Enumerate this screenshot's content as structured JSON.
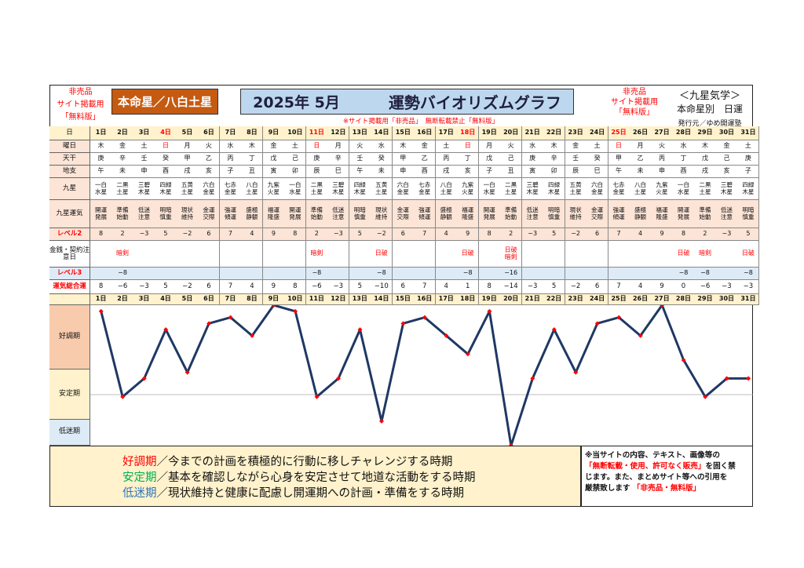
{
  "header": {
    "not_for_sale_left": [
      "非売品",
      "サイト掲載用",
      "「無料版」"
    ],
    "star_badge": "本命星／八白土星",
    "title_month": "2025年 5月",
    "title_main": "運勢バイオリズムグラフ",
    "not_for_sale_right": [
      "非売品",
      "サイト掲載用",
      "「無料版」"
    ],
    "brand": [
      "＜九星気学＞",
      "本命星別　日運",
      "発行元／ゆめ開運塾"
    ],
    "notice": "※サイト掲載用「非売品」　無断転載禁止「無料版」"
  },
  "row_labels": {
    "day": "日",
    "weekday": "曜日",
    "stem": "天干",
    "branch": "地支",
    "star": "九星",
    "fortune": "九星運気",
    "level2": "レベル2",
    "warn": "金銭・契約注意日",
    "level3": "レベル3",
    "total": "運気総合運"
  },
  "days": {
    "day": [
      "1日",
      "2日",
      "3日",
      "4日",
      "5日",
      "6日",
      "7日",
      "8日",
      "9日",
      "10日",
      "11日",
      "12日",
      "13日",
      "14日",
      "15日",
      "16日",
      "17日",
      "18日",
      "19日",
      "20日",
      "21日",
      "22日",
      "23日",
      "24日",
      "25日",
      "26日",
      "27日",
      "28日",
      "29日",
      "30日",
      "31日"
    ],
    "weekday": [
      "木",
      "金",
      "土",
      "日",
      "月",
      "火",
      "水",
      "木",
      "金",
      "土",
      "日",
      "月",
      "火",
      "水",
      "木",
      "金",
      "土",
      "日",
      "月",
      "火",
      "水",
      "木",
      "金",
      "土",
      "日",
      "月",
      "火",
      "水",
      "木",
      "金",
      "土"
    ],
    "sunday_idx": [
      3,
      10,
      17,
      24
    ],
    "stem": [
      "庚",
      "辛",
      "壬",
      "癸",
      "甲",
      "乙",
      "丙",
      "丁",
      "戊",
      "己",
      "庚",
      "辛",
      "壬",
      "癸",
      "甲",
      "乙",
      "丙",
      "丁",
      "戊",
      "己",
      "庚",
      "辛",
      "壬",
      "癸",
      "甲",
      "乙",
      "丙",
      "丁",
      "戊",
      "己",
      "庚"
    ],
    "branch": [
      "午",
      "未",
      "申",
      "酉",
      "戌",
      "亥",
      "子",
      "丑",
      "寅",
      "卯",
      "辰",
      "巳",
      "午",
      "未",
      "申",
      "酉",
      "戌",
      "亥",
      "子",
      "丑",
      "寅",
      "卯",
      "辰",
      "巳",
      "午",
      "未",
      "申",
      "酉",
      "戌",
      "亥",
      "子"
    ],
    "star": [
      "一白\n水星",
      "二黒\n土星",
      "三碧\n木星",
      "四緑\n木星",
      "五黄\n土星",
      "六白\n金星",
      "七赤\n金星",
      "八白\n土星",
      "九紫\n火星",
      "一白\n水星",
      "二黒\n土星",
      "三碧\n木星",
      "四緑\n木星",
      "五黄\n土星",
      "六白\n金星",
      "七赤\n金星",
      "八白\n土星",
      "九紫\n火星",
      "一白\n水星",
      "二黒\n土星",
      "三碧\n木星",
      "四緑\n木星",
      "五黄\n土星",
      "六白\n金星",
      "七赤\n金星",
      "八白\n土星",
      "九紫\n火星",
      "一白\n水星",
      "二黒\n土星",
      "三碧\n木星",
      "四緑\n木星"
    ],
    "fortune": [
      "開運\n発展",
      "準備\n始動",
      "低迷\n注意",
      "明暗\n慎重",
      "現状\n維持",
      "金運\n交際",
      "強運\n傾運",
      "盛極\n静観",
      "福運\n隆盛",
      "開運\n発展",
      "準備\n始動",
      "低迷\n注意",
      "明暗\n慎重",
      "現状\n維持",
      "金運\n交際",
      "強運\n傾運",
      "盛極\n静観",
      "福運\n隆盛",
      "開運\n発展",
      "準備\n始動",
      "低迷\n注意",
      "明暗\n慎重",
      "現状\n維持",
      "金運\n交際",
      "強運\n傾運",
      "盛極\n静観",
      "福運\n隆盛",
      "開運\n発展",
      "準備\n始動",
      "低迷\n注意",
      "明暗\n慎重"
    ],
    "level2": [
      "8",
      "2",
      "−3",
      "5",
      "−2",
      "6",
      "7",
      "4",
      "9",
      "8",
      "2",
      "−3",
      "5",
      "−2",
      "6",
      "7",
      "4",
      "9",
      "8",
      "2",
      "−3",
      "5",
      "−2",
      "6",
      "7",
      "4",
      "9",
      "8",
      "2",
      "−3",
      "5"
    ],
    "warn": [
      "",
      "暗剣",
      "",
      "",
      "",
      "",
      "",
      "",
      "",
      "",
      "暗剣",
      "",
      "",
      "日破",
      "",
      "",
      "",
      "日破",
      "",
      "日破\n暗剣",
      "",
      "",
      "",
      "",
      "",
      "",
      "",
      "日破",
      "暗剣",
      "",
      "日破"
    ],
    "level3": [
      "",
      "−8",
      "",
      "",
      "",
      "",
      "",
      "",
      "",
      "",
      "−8",
      "",
      "",
      "−8",
      "",
      "",
      "",
      "−8",
      "",
      "−16",
      "",
      "",
      "",
      "",
      "",
      "",
      "",
      "−8",
      "−8",
      "",
      "−8"
    ],
    "total": [
      "8",
      "−6",
      "−3",
      "5",
      "−2",
      "6",
      "7",
      "4",
      "9",
      "8",
      "−6",
      "−3",
      "5",
      "−10",
      "6",
      "7",
      "4",
      "1",
      "8",
      "−14",
      "−3",
      "5",
      "−2",
      "6",
      "7",
      "4",
      "9",
      "0",
      "−6",
      "−3",
      "−3"
    ]
  },
  "bands": {
    "good": "好調期",
    "stable": "安定期",
    "low": "低迷期"
  },
  "legend": {
    "good_term": "好調期",
    "good_text": "／今までの計画を積極的に行動に移しチャレンジする時期",
    "stable_term": "安定期",
    "stable_text": "／基本を確認しながら心身を安定させて地道な活動をする時期",
    "low_term": "低迷期",
    "low_text": "／現状維持と健康に配慮し開運期への計画・準備をする時期"
  },
  "disclaimer": {
    "line1": "※当サイトの内容、テキスト、画像等の",
    "line2_red": "「無断転載・使用、許可なく販売」",
    "line2_rest": "を固く禁",
    "line3": "じます。また、まとめサイト等への引用を",
    "line4_start": "厳禁致します",
    "line4_red": "「非売品・無料版」"
  },
  "colors": {
    "badge": "#c55a11",
    "title_bg": "#bdd7ee",
    "head_row": "#fff2cc",
    "label_col": "#fce4d6",
    "good_band": "#f8cbad",
    "stable_band": "#fff2cc",
    "low_band": "#ddebf7",
    "line": "#1f3864",
    "point": "#ff0000",
    "legend_bg": "#fff2cc"
  },
  "chart_data": {
    "type": "line",
    "categories": [
      "1日",
      "2日",
      "3日",
      "4日",
      "5日",
      "6日",
      "7日",
      "8日",
      "9日",
      "10日",
      "11日",
      "12日",
      "13日",
      "14日",
      "15日",
      "16日",
      "17日",
      "18日",
      "19日",
      "20日",
      "21日",
      "22日",
      "23日",
      "24日",
      "25日",
      "26日",
      "27日",
      "28日",
      "29日",
      "30日",
      "31日"
    ],
    "values": [
      8,
      -6,
      -3,
      5,
      -2,
      6,
      7,
      4,
      9,
      8,
      -6,
      -3,
      5,
      -10,
      6,
      7,
      4,
      1,
      8,
      -14,
      -3,
      5,
      -2,
      6,
      7,
      4,
      9,
      0,
      -6,
      -3,
      -3
    ],
    "ylim": [
      -14,
      9
    ],
    "bands": [
      "好調期",
      "安定期",
      "低迷期"
    ],
    "grid": false
  }
}
